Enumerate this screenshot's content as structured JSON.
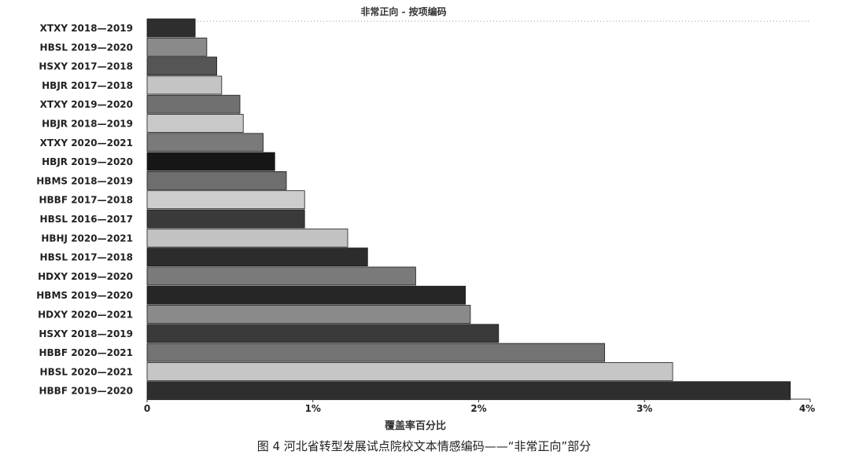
{
  "caption": "图 4  河北省转型发展试点院校文本情感编码——“非常正向”部分",
  "chart_data": {
    "type": "bar",
    "orientation": "horizontal",
    "title": "非常正向 - 按项编码",
    "xlabel": "覆盖率百分比",
    "ylabel": "",
    "xlim": [
      0,
      4
    ],
    "x_ticks": [
      "0",
      "1%",
      "2%",
      "3%",
      "4%"
    ],
    "grid": false,
    "unit": "%",
    "categories": [
      "XTXY 2018—2019",
      "HBSL 2019—2020",
      "HSXY 2017—2018",
      "HBJR 2017—2018",
      "XTXY 2019—2020",
      "HBJR 2018—2019",
      "XTXY 2020—2021",
      "HBJR 2019—2020",
      "HBMS 2018—2019",
      "HBBF 2017—2018",
      "HBSL 2016—2017",
      "HBHJ  2020—2021",
      "HBSL 2017—2018",
      "HDXY 2019—2020",
      "HBMS 2019—2020",
      "HDXY 2020—2021",
      "HSXY 2018—2019",
      "HBBF 2020—2021",
      "HBSL 2020—2021",
      "HBBF 2019—2020"
    ],
    "values": [
      0.29,
      0.36,
      0.42,
      0.45,
      0.56,
      0.58,
      0.7,
      0.77,
      0.84,
      0.95,
      0.95,
      1.21,
      1.33,
      1.62,
      1.92,
      1.95,
      2.12,
      2.76,
      3.17,
      3.88
    ],
    "colors": [
      "#2e2e2e",
      "#8a8a8a",
      "#555555",
      "#c4c4c4",
      "#707070",
      "#c8c8c8",
      "#7a7a7a",
      "#161616",
      "#6e6e6e",
      "#cdcdcd",
      "#3a3a3a",
      "#c2c2c2",
      "#2c2c2c",
      "#7a7a7a",
      "#262626",
      "#8a8a8a",
      "#3a3a3a",
      "#737373",
      "#c6c6c6",
      "#2e2e2e"
    ]
  }
}
